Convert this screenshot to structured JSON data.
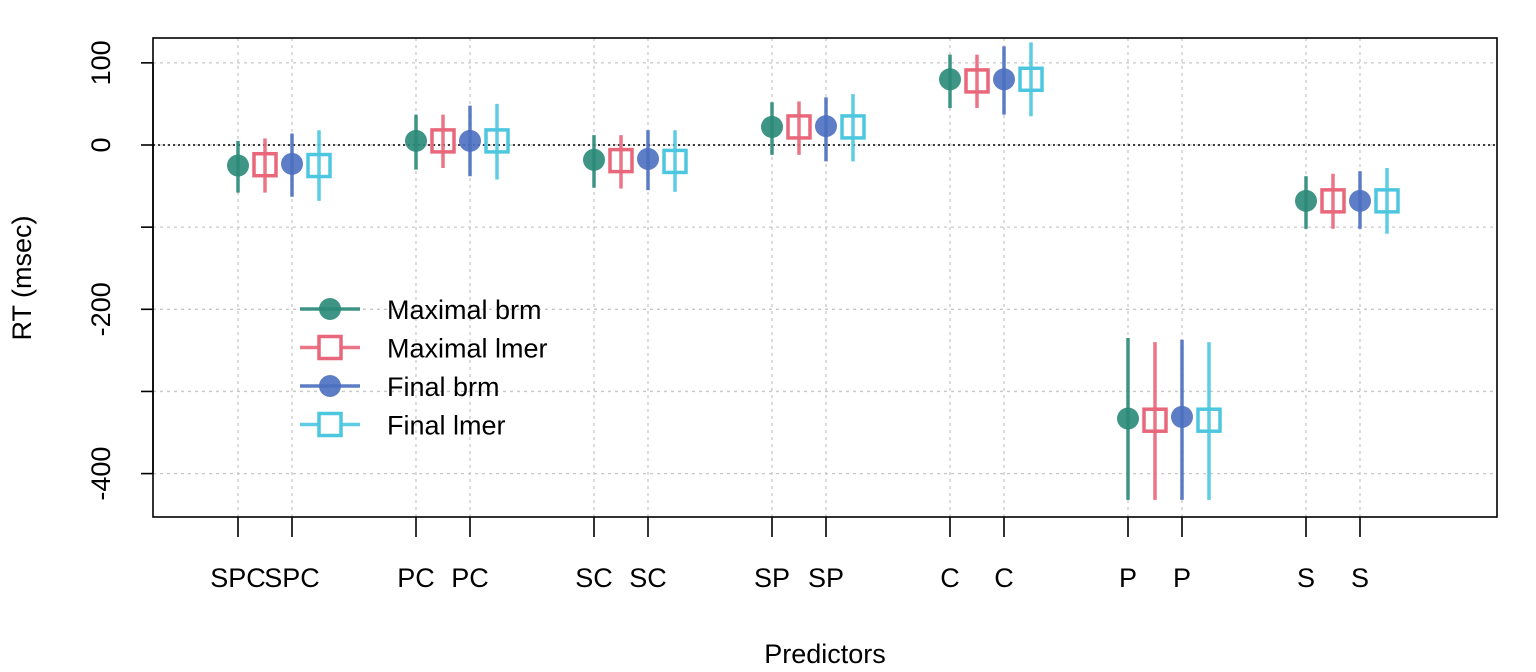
{
  "chart_data": {
    "type": "scatter",
    "xlabel": "Predictors",
    "ylabel": "RT (msec)",
    "ylim": [
      -450,
      130
    ],
    "yticks": [
      100,
      0,
      -200,
      -400
    ],
    "grid": true,
    "reference_line": 0,
    "legend_position": "bottom-left",
    "groups": [
      {
        "labels": [
          "SPC",
          "SPC"
        ]
      },
      {
        "labels": [
          "PC",
          "PC"
        ]
      },
      {
        "labels": [
          "SC",
          "SC"
        ]
      },
      {
        "labels": [
          "SP",
          "SP"
        ]
      },
      {
        "labels": [
          "C",
          "C"
        ]
      },
      {
        "labels": [
          "P",
          "P"
        ]
      },
      {
        "labels": [
          "S",
          "S"
        ]
      }
    ],
    "series": [
      {
        "name": "Maximal brm",
        "marker": "filled-circle",
        "color": "#2a8a78",
        "values": [
          -25,
          5,
          -18,
          22,
          80,
          -333,
          -68
        ],
        "lower": [
          -58,
          -30,
          -52,
          -12,
          45,
          -432,
          -102
        ],
        "upper": [
          5,
          37,
          12,
          52,
          110,
          -235,
          -38
        ]
      },
      {
        "name": "Maximal lmer",
        "marker": "open-square",
        "color": "#e8677a",
        "values": [
          -24,
          5,
          -19,
          22,
          78,
          -335,
          -68
        ],
        "lower": [
          -58,
          -28,
          -53,
          -12,
          45,
          -432,
          -102
        ],
        "upper": [
          8,
          37,
          12,
          53,
          110,
          -240,
          -35
        ]
      },
      {
        "name": "Final brm",
        "marker": "filled-circle",
        "color": "#4b6fc0",
        "values": [
          -23,
          5,
          -17,
          23,
          80,
          -331,
          -68
        ],
        "lower": [
          -63,
          -38,
          -55,
          -20,
          37,
          -432,
          -102
        ],
        "upper": [
          14,
          48,
          18,
          58,
          120,
          -237,
          -32
        ]
      },
      {
        "name": "Final lmer",
        "marker": "open-square",
        "color": "#4dc7df",
        "values": [
          -25,
          5,
          -20,
          22,
          80,
          -335,
          -68
        ],
        "lower": [
          -68,
          -42,
          -57,
          -20,
          35,
          -432,
          -108
        ],
        "upper": [
          18,
          50,
          18,
          62,
          125,
          -240,
          -28
        ]
      }
    ]
  }
}
